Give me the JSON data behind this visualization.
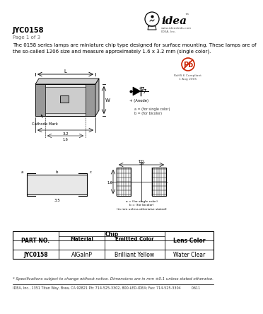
{
  "title": "JYC0158",
  "page_info": "Page 1 of 3",
  "desc1": "The 0158 series lamps are miniature chip type designed for surface mounting. These lamps are of",
  "desc2": "the so-called 1206 size and measure approximately 1.6 x 3.2 mm (single color).",
  "table_row": [
    "JYC0158",
    "AlGaInP",
    "Brilliant Yellow",
    "Water Clear"
  ],
  "footnote": "* Specifications subject to change without notice. Dimensions are in mm ±0.1 unless stated otherwise.",
  "footer": "IDEA, Inc., 1351 Titan Way, Brea, CA 92821 Ph: 714-525-3302, 800-LED-IDEA; Fax: 714-525-3304          0611",
  "bg_color": "#ffffff",
  "text_color": "#000000"
}
